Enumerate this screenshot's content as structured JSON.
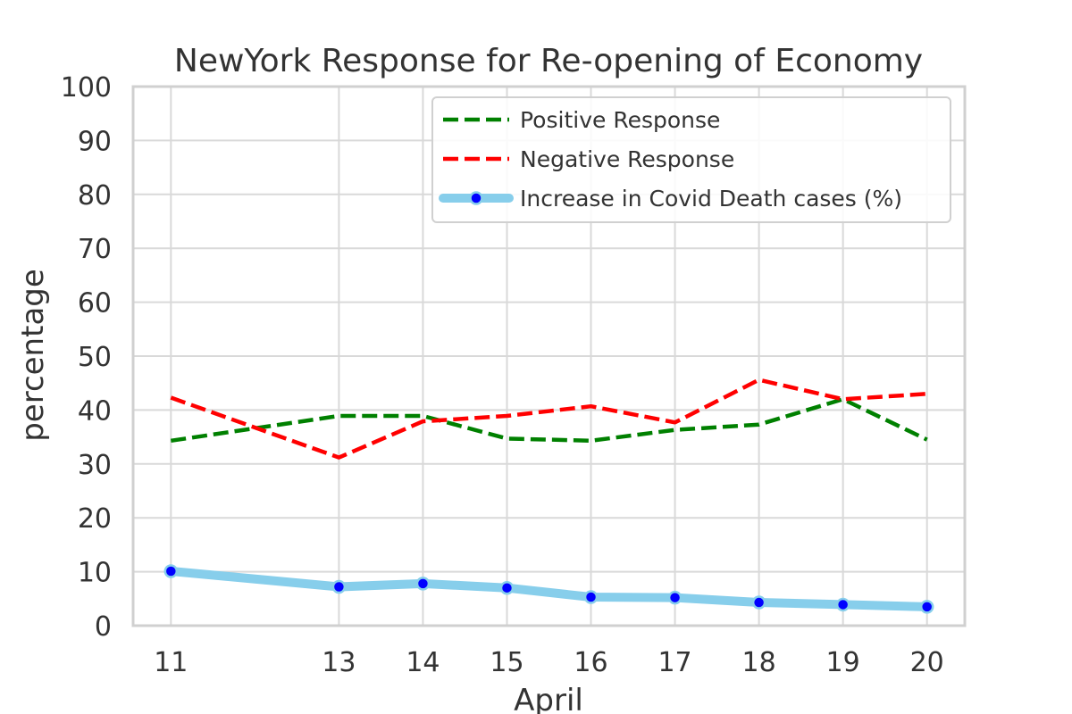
{
  "chart_data": {
    "type": "line",
    "title": "NewYork Response for Re-opening of Economy",
    "xlabel": "April",
    "ylabel": "percentage",
    "x": [
      11,
      13,
      14,
      15,
      16,
      17,
      18,
      19,
      20
    ],
    "xlim": [
      10.55,
      20.45
    ],
    "ylim": [
      0,
      100
    ],
    "yticks": [
      0,
      10,
      20,
      30,
      40,
      50,
      60,
      70,
      80,
      90,
      100
    ],
    "grid": true,
    "legend_position": "top-right",
    "series": [
      {
        "name": "Positive Response",
        "style": "dashed",
        "color": "#008000",
        "values": [
          34.3,
          38.9,
          38.9,
          34.7,
          34.3,
          36.3,
          37.3,
          42.0,
          34.5
        ]
      },
      {
        "name": "Negative Response",
        "style": "dashed",
        "color": "#ff0000",
        "values": [
          42.3,
          31.2,
          37.9,
          38.9,
          40.7,
          37.7,
          45.6,
          42.0,
          43.0
        ]
      },
      {
        "name": "Increase in Covid Death cases (%)",
        "style": "solid-marker",
        "color": "#87ceeb",
        "marker_color": "#0000ff",
        "values": [
          10.1,
          7.2,
          7.8,
          7.0,
          5.3,
          5.2,
          4.3,
          3.9,
          3.5
        ]
      }
    ]
  }
}
